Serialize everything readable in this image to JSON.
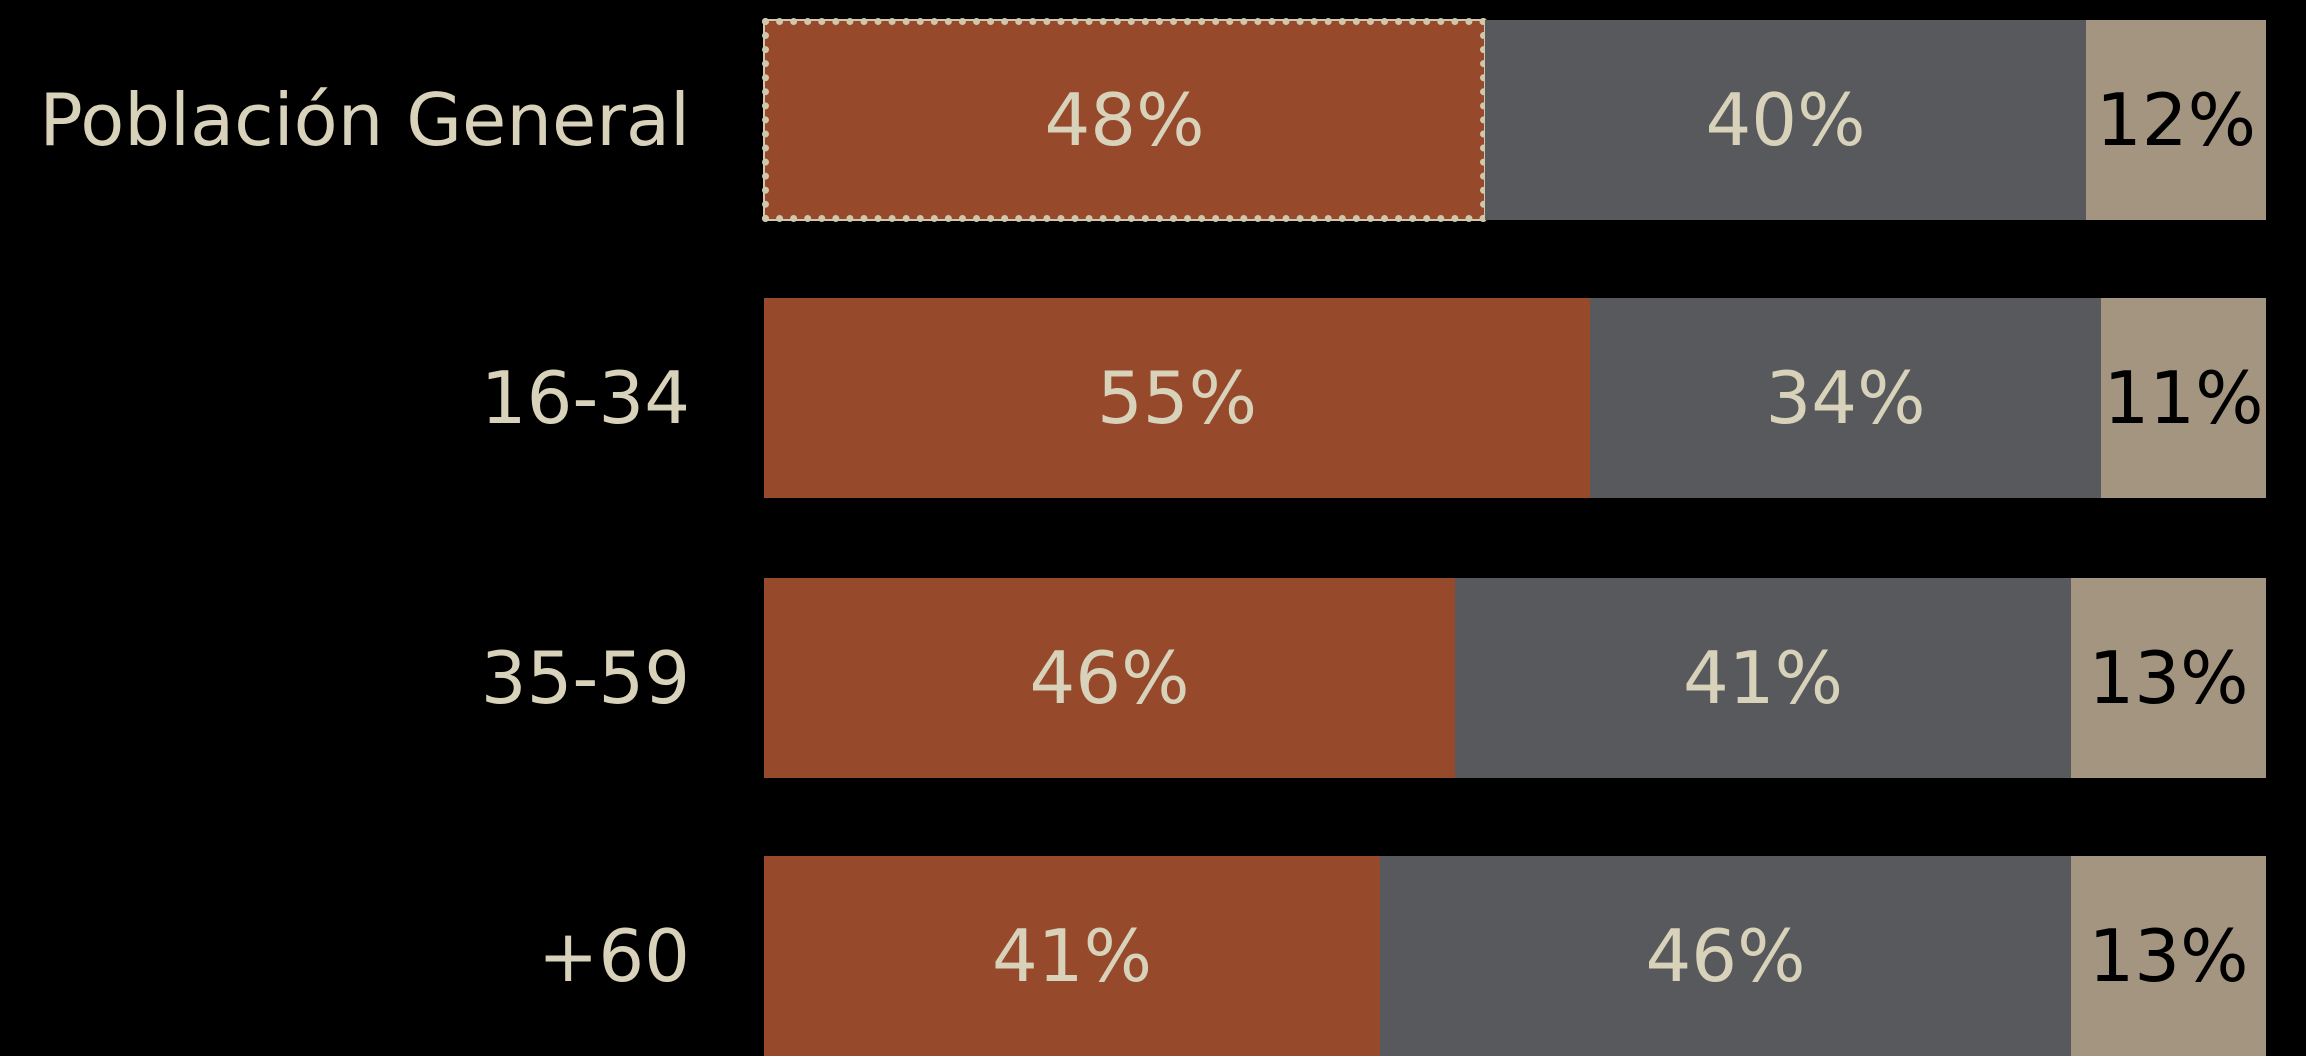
{
  "chart_data": {
    "type": "bar",
    "orientation": "horizontal",
    "stacked": true,
    "normalized_percent": true,
    "categories": [
      "Población General",
      "16-34",
      "35-59",
      "+60"
    ],
    "series": [
      {
        "values": [
          48,
          55,
          46,
          41
        ],
        "labels": [
          "48%",
          "55%",
          "46%",
          "41%"
        ]
      },
      {
        "values": [
          40,
          34,
          41,
          46
        ],
        "labels": [
          "40%",
          "34%",
          "41%",
          "46%"
        ]
      },
      {
        "values": [
          12,
          11,
          13,
          13
        ],
        "labels": [
          "12%",
          "11%",
          "13%",
          "13%"
        ]
      }
    ],
    "colors": [
      "#96492b",
      "#58595c",
      "#a49580"
    ],
    "label_colors": [
      "#d8d2ba",
      "#d8d2ba",
      "#000000"
    ],
    "xlim": [
      0,
      100
    ],
    "grid": false,
    "legend": "none",
    "highlight": {
      "row": 0,
      "series": 0
    },
    "background": "#000000",
    "category_label_color": "#d8d2ba"
  }
}
